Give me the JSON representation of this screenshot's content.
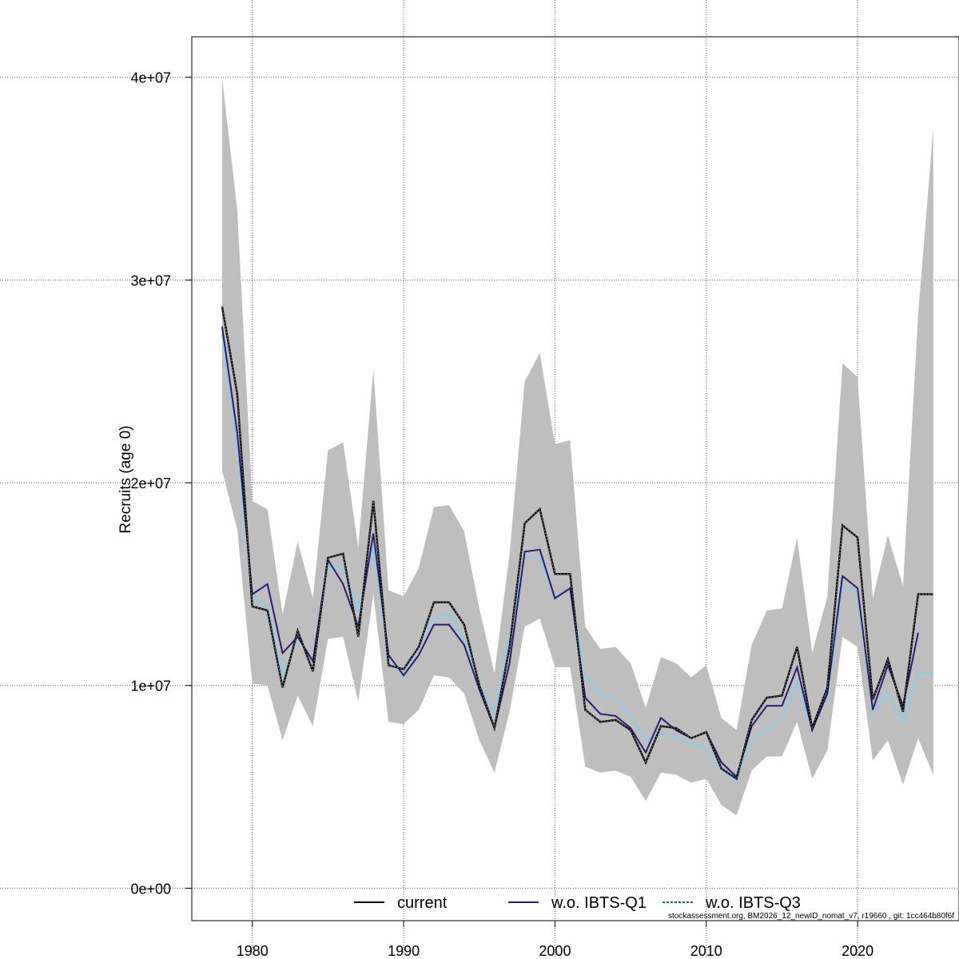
{
  "chart_data": {
    "type": "line",
    "ylabel": "Recruits (age 0)",
    "xlabel": "",
    "xlim": [
      1976,
      2026.7
    ],
    "ylim": [
      -1600000,
      42000000
    ],
    "xticks": [
      1980,
      1990,
      2000,
      2010,
      2020
    ],
    "xtick_labels": [
      "1980",
      "1990",
      "2000",
      "2010",
      "2020"
    ],
    "yticks": [
      0,
      10000000,
      20000000,
      30000000,
      40000000
    ],
    "ytick_labels": [
      "0e+00",
      "1e+07",
      "2e+07",
      "3e+07",
      "4e+07"
    ],
    "grid": true,
    "legend_position": "bottom",
    "footnote": "stockassessment.org, BM2026_12_newID_nomat_v7, r19660 , git: 1cc464b80f6f",
    "x": [
      1978,
      1979,
      1980,
      1981,
      1982,
      1983,
      1984,
      1985,
      1986,
      1987,
      1988,
      1989,
      1990,
      1991,
      1992,
      1993,
      1994,
      1995,
      1996,
      1997,
      1998,
      1999,
      2000,
      2001,
      2002,
      2003,
      2004,
      2005,
      2006,
      2007,
      2008,
      2009,
      2010,
      2011,
      2012,
      2013,
      2014,
      2015,
      2016,
      2017,
      2018,
      2019,
      2020,
      2021,
      2022,
      2023,
      2024,
      2025
    ],
    "confidence_band": {
      "color": "#bebebe",
      "upper": [
        40000000,
        33500000,
        19100000,
        18700000,
        13500000,
        17100000,
        14300000,
        21600000,
        22000000,
        16800000,
        25600000,
        14700000,
        14400000,
        15800000,
        18800000,
        18900000,
        17600000,
        13800000,
        10600000,
        16500000,
        25000000,
        26400000,
        21900000,
        22100000,
        12900000,
        11800000,
        11900000,
        11100000,
        8900000,
        11400000,
        11100000,
        10400000,
        11000000,
        8400000,
        7800000,
        12000000,
        13700000,
        13800000,
        17300000,
        11600000,
        14400000,
        25900000,
        25200000,
        14300000,
        17400000,
        14900000,
        28300000,
        37500000
      ],
      "lower": [
        20600000,
        17700000,
        10100000,
        10000000,
        7300000,
        9500000,
        8000000,
        12300000,
        12400000,
        9200000,
        14500000,
        8200000,
        8100000,
        8800000,
        10500000,
        10400000,
        9600000,
        7300000,
        5700000,
        8700000,
        12900000,
        13300000,
        10900000,
        10900000,
        6000000,
        5700000,
        5800000,
        5500000,
        4300000,
        5700000,
        5600000,
        5200000,
        5400000,
        4100000,
        3600000,
        5800000,
        6500000,
        6500000,
        8200000,
        5400000,
        6800000,
        12400000,
        11900000,
        6300000,
        7300000,
        5100000,
        7400000,
        5600000
      ]
    },
    "series": [
      {
        "name": "current",
        "color": "#000000",
        "values": [
          28700000,
          24400000,
          13900000,
          13700000,
          9900000,
          12700000,
          10700000,
          16300000,
          16500000,
          12400000,
          19100000,
          11000000,
          10800000,
          11900000,
          14100000,
          14100000,
          13000000,
          10000000,
          7900000,
          11900000,
          18000000,
          18700000,
          15500000,
          15500000,
          8800000,
          8200000,
          8300000,
          7800000,
          6200000,
          8000000,
          7900000,
          7400000,
          7700000,
          5900000,
          5400000,
          8300000,
          9400000,
          9500000,
          11900000,
          7900000,
          9900000,
          17900000,
          17300000,
          9300000,
          11300000,
          8700000,
          14500000,
          14500000
        ]
      },
      {
        "name": "w.o. IBTS-Q1",
        "color": "#2a1a78",
        "values": [
          27700000,
          22500000,
          14500000,
          15000000,
          11600000,
          12400000,
          11200000,
          16200000,
          15000000,
          12900000,
          17500000,
          11500000,
          10500000,
          11500000,
          13000000,
          13000000,
          12000000,
          9800000,
          7900000,
          11100000,
          16600000,
          16700000,
          14300000,
          14800000,
          9400000,
          8600000,
          8500000,
          7900000,
          6700000,
          8400000,
          7800000,
          7400000,
          7700000,
          6200000,
          5500000,
          8000000,
          9000000,
          9000000,
          10900000,
          7800000,
          9600000,
          15400000,
          14800000,
          8800000,
          11000000,
          9000000,
          12600000,
          null
        ]
      },
      {
        "name": "w.o. IBTS-Q3",
        "color": "#87ceeb",
        "values": [
          27300000,
          22000000,
          14400000,
          13800000,
          10500000,
          12300000,
          11200000,
          15900000,
          15800000,
          13700000,
          16900000,
          11400000,
          10400000,
          12000000,
          13300000,
          13500000,
          12300000,
          10100000,
          8700000,
          12400000,
          16400000,
          16300000,
          14400000,
          14700000,
          10500000,
          9600000,
          9300000,
          8500000,
          7300000,
          7600000,
          7500000,
          7100000,
          6900000,
          5800000,
          5300000,
          7200000,
          7900000,
          8400000,
          10200000,
          7800000,
          9500000,
          14900000,
          14600000,
          8700000,
          9600000,
          8200000,
          10600000,
          10600000
        ]
      }
    ]
  }
}
